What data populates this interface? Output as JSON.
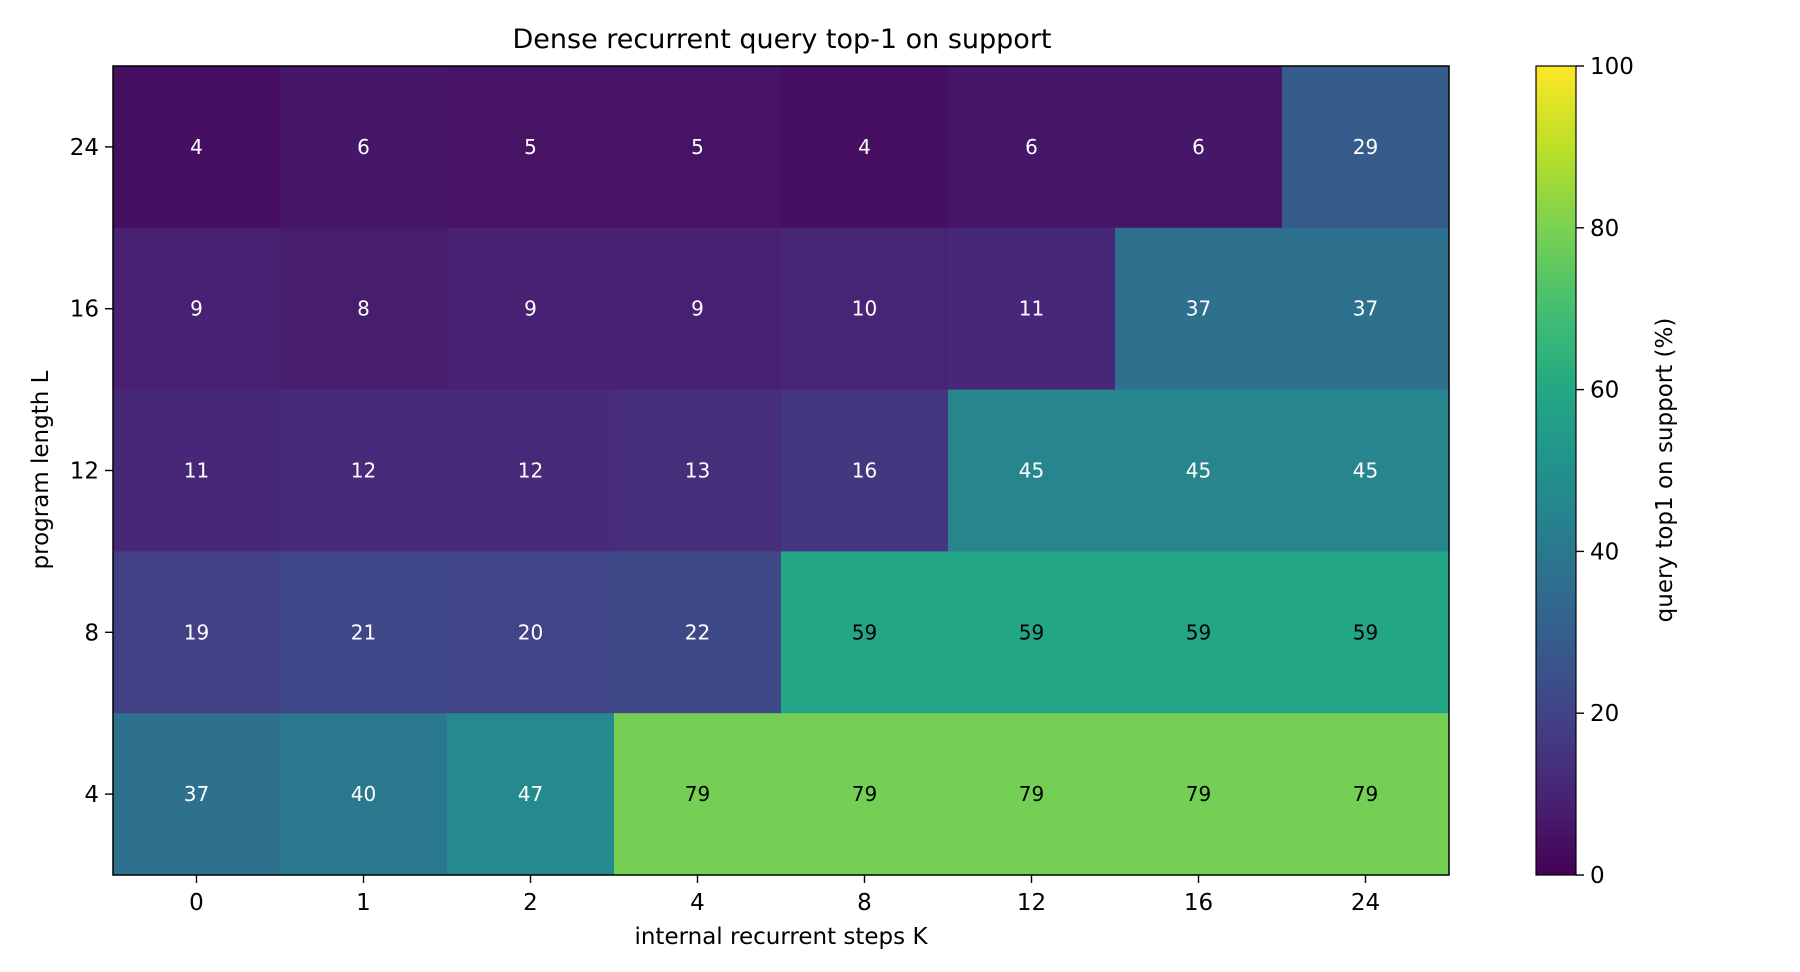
{
  "chart_data": {
    "type": "heatmap",
    "title": "Dense recurrent query top-1 on support",
    "xlabel": "internal recurrent steps K",
    "ylabel": "program length L",
    "x_categories": [
      "0",
      "1",
      "2",
      "4",
      "8",
      "12",
      "16",
      "24"
    ],
    "y_categories": [
      "24",
      "16",
      "12",
      "8",
      "4"
    ],
    "values": [
      [
        4,
        6,
        5,
        5,
        4,
        6,
        6,
        29
      ],
      [
        9,
        8,
        9,
        9,
        10,
        11,
        37,
        37
      ],
      [
        11,
        12,
        12,
        13,
        16,
        45,
        45,
        45
      ],
      [
        19,
        21,
        20,
        22,
        59,
        59,
        59,
        59
      ],
      [
        37,
        40,
        47,
        79,
        79,
        79,
        79,
        79
      ]
    ],
    "colormap": "viridis",
    "vmin": 0,
    "vmax": 100,
    "colorbar": {
      "label": "query top1 on support (%)",
      "ticks": [
        "0",
        "20",
        "40",
        "60",
        "80",
        "100"
      ]
    },
    "grid": false
  }
}
